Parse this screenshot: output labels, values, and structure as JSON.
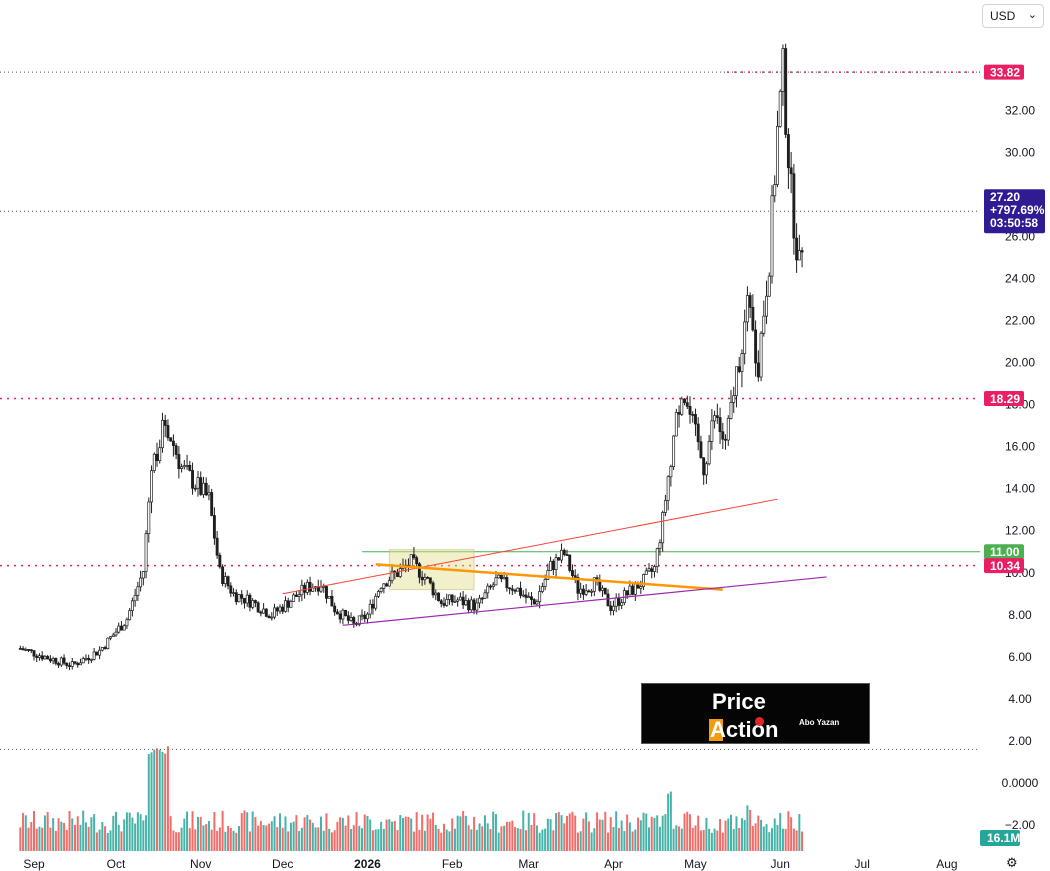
{
  "currency": {
    "label": "USD",
    "chevron_icon": "chevron-down-icon"
  },
  "settings_icon": "gear-icon",
  "logo": {
    "line1": "Price",
    "line2": "Action",
    "byline": "Abo Yazan"
  },
  "colors": {
    "up": "#26a69a",
    "down": "#ef5350",
    "candle": "#1e1e1e",
    "resistance": "#e91e63",
    "trend_up": "#f44336",
    "trend_down": "#ff9800",
    "support": "#9c27b0",
    "level11": "#4caf50",
    "price_badge": "#311b92"
  },
  "chart_data": {
    "type": "candlestick",
    "title": "",
    "x_ticks": [
      "Sep",
      "Oct",
      "Nov",
      "Dec",
      "2026",
      "Feb",
      "Mar",
      "Apr",
      "May",
      "Jun",
      "Jul",
      "Aug"
    ],
    "y_ticks": [
      "32.00",
      "30.00",
      "28.00",
      "26.00",
      "24.00",
      "22.00",
      "20.00",
      "18.00",
      "16.00",
      "14.00",
      "12.00",
      "10.00",
      "8.00",
      "6.00",
      "4.00",
      "2.00",
      "0.0000",
      "−2.00"
    ],
    "ylim": [
      -2.6,
      35.1
    ],
    "price_labels": {
      "high": "33.82",
      "last": "27.20",
      "change": "+797.69%",
      "countdown": "03:50:58",
      "resistance": "18.29",
      "level": "11.00",
      "support": "10.34",
      "volume": "16.1M"
    },
    "horizontal_levels": [
      33.82,
      27.2,
      18.29,
      11.0,
      10.34,
      1.6
    ],
    "trendlines": [
      {
        "name": "red-trendline",
        "x": [
          "2025-12-01",
          "2026-05-31"
        ],
        "y": [
          9.0,
          13.5
        ]
      },
      {
        "name": "orange-trendline",
        "x": [
          "2026-01-04",
          "2026-05-11"
        ],
        "y": [
          10.4,
          9.2
        ]
      },
      {
        "name": "purple-trendline",
        "x": [
          "2025-12-23",
          "2026-06-18"
        ],
        "y": [
          7.5,
          9.8
        ]
      }
    ],
    "shaded_box": {
      "x": [
        "2026-01-09",
        "2026-02-09"
      ],
      "y": [
        9.2,
        11.1
      ]
    },
    "waypoints": [
      [
        "2025-08-27",
        6.4
      ],
      [
        "2025-09-05",
        6.0
      ],
      [
        "2025-09-15",
        5.6
      ],
      [
        "2025-09-25",
        6.3
      ],
      [
        "2025-10-05",
        7.8
      ],
      [
        "2025-10-11",
        10.1
      ],
      [
        "2025-10-14",
        15.0
      ],
      [
        "2025-10-19",
        17.2
      ],
      [
        "2025-10-25",
        15.0
      ],
      [
        "2025-11-04",
        13.5
      ],
      [
        "2025-11-08",
        10.0
      ],
      [
        "2025-11-13",
        9.0
      ],
      [
        "2025-11-20",
        8.6
      ],
      [
        "2025-11-27",
        8.0
      ],
      [
        "2025-12-05",
        8.8
      ],
      [
        "2025-12-10",
        9.3
      ],
      [
        "2025-12-15",
        9.5
      ],
      [
        "2025-12-20",
        8.3
      ],
      [
        "2025-12-27",
        7.5
      ],
      [
        "2026-01-01",
        8.0
      ],
      [
        "2026-01-06",
        9.5
      ],
      [
        "2026-01-12",
        10.0
      ],
      [
        "2026-01-17",
        10.5
      ],
      [
        "2026-01-22",
        9.8
      ],
      [
        "2026-01-28",
        8.6
      ],
      [
        "2026-02-03",
        8.7
      ],
      [
        "2026-02-10",
        8.4
      ],
      [
        "2026-02-17",
        9.6
      ],
      [
        "2026-02-24",
        9.3
      ],
      [
        "2026-03-03",
        8.5
      ],
      [
        "2026-03-09",
        10.3
      ],
      [
        "2026-03-14",
        10.9
      ],
      [
        "2026-03-19",
        9.2
      ],
      [
        "2026-03-25",
        9.5
      ],
      [
        "2026-03-31",
        8.4
      ],
      [
        "2026-04-06",
        9.0
      ],
      [
        "2026-04-12",
        9.6
      ],
      [
        "2026-04-16",
        10.2
      ],
      [
        "2026-04-19",
        12.5
      ],
      [
        "2026-04-22",
        15.6
      ],
      [
        "2026-04-26",
        18.8
      ],
      [
        "2026-05-01",
        16.5
      ],
      [
        "2026-05-04",
        15.0
      ],
      [
        "2026-05-08",
        17.5
      ],
      [
        "2026-05-12",
        16.0
      ],
      [
        "2026-05-16",
        19.5
      ],
      [
        "2026-05-20",
        22.5
      ],
      [
        "2026-05-24",
        20.0
      ],
      [
        "2026-05-28",
        25.0
      ],
      [
        "2026-05-31",
        31.0
      ],
      [
        "2026-06-02",
        33.8
      ],
      [
        "2026-06-05",
        28.0
      ],
      [
        "2026-06-08",
        24.5
      ],
      [
        "2026-06-10",
        27.2
      ]
    ],
    "volume_bars": [
      {
        "start": "2025-10-12",
        "end": "2025-10-20",
        "level": 1.0
      },
      {
        "start": "2026-04-21",
        "end": "2026-04-23",
        "level": 0.55
      },
      {
        "start": "2026-05-20",
        "end": "2026-05-22",
        "level": 0.42
      }
    ]
  }
}
